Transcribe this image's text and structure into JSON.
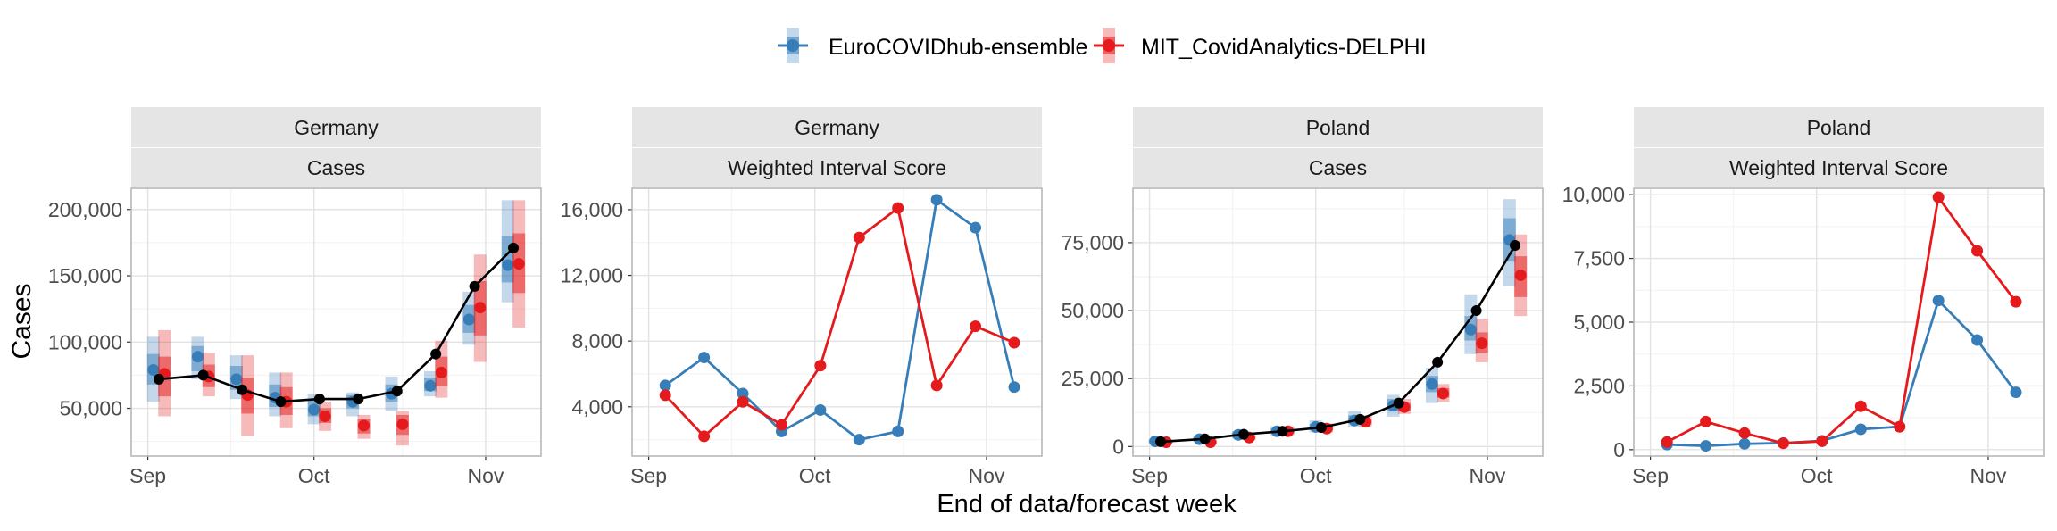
{
  "colors": {
    "ensemble": "#377EB8",
    "delphi": "#E41A1C",
    "truth": "#000000",
    "strip": "#E5E5E5",
    "grid_major": "#E3E3E3",
    "grid_minor": "#F2F2F2",
    "panel_border": "#B3B3B3",
    "tick_text": "#4D4D4D"
  },
  "legend": {
    "position": "top-center",
    "items": [
      {
        "key": "ensemble",
        "label": "EuroCOVIDhub-ensemble"
      },
      {
        "key": "delphi",
        "label": "MIT_CovidAnalytics-DELPHI"
      }
    ]
  },
  "axis_labels": {
    "y": "Cases",
    "x": "End of data/forecast week"
  },
  "chart_data": [
    {
      "type": "line",
      "location": "Germany",
      "metric": "Cases",
      "show_intervals": true,
      "x_ticks": [
        {
          "day": 0,
          "label": "Sep"
        },
        {
          "day": 30,
          "label": "Oct"
        },
        {
          "day": 61,
          "label": "Nov"
        }
      ],
      "xlim": [
        -3,
        71
      ],
      "ylim": [
        14000,
        216000
      ],
      "y_ticks": [
        {
          "value": 50000,
          "label": "50,000"
        },
        {
          "value": 100000,
          "label": "100,000"
        },
        {
          "value": 150000,
          "label": "150,000"
        },
        {
          "value": 200000,
          "label": "200,000"
        }
      ],
      "grid": true,
      "truth": {
        "x": [
          2,
          10,
          17,
          24,
          31,
          38,
          45,
          52,
          59,
          66
        ],
        "y": [
          72000,
          75000,
          64000,
          55000,
          57000,
          57000,
          63000,
          91000,
          142000,
          171000
        ]
      },
      "forecasts": {
        "ensemble": {
          "x": [
            1,
            9,
            16,
            23,
            30,
            37,
            44,
            51,
            58,
            65
          ],
          "median": [
            79000,
            89000,
            72000,
            58000,
            49000,
            55000,
            61000,
            67000,
            117000,
            158000
          ],
          "outer": [
            [
              55000,
              104000
            ],
            [
              72000,
              104000
            ],
            [
              57000,
              90000
            ],
            [
              44000,
              77000
            ],
            [
              38000,
              61000
            ],
            [
              44000,
              62000
            ],
            [
              48000,
              74000
            ],
            [
              59000,
              78000
            ],
            [
              98000,
              138000
            ],
            [
              130000,
              207000
            ]
          ],
          "inner": [
            [
              68000,
              91000
            ],
            [
              78000,
              97000
            ],
            [
              64000,
              82000
            ],
            [
              51000,
              68000
            ],
            [
              44000,
              56000
            ],
            [
              50000,
              60000
            ],
            [
              55000,
              68000
            ],
            [
              63000,
              73000
            ],
            [
              107000,
              128000
            ],
            [
              145000,
              180000
            ]
          ]
        },
        "delphi": {
          "x": [
            3,
            11,
            18,
            25,
            32,
            39,
            46,
            53,
            60,
            67
          ],
          "median": [
            76000,
            74000,
            60000,
            55000,
            44000,
            37000,
            38000,
            77000,
            126000,
            159000
          ],
          "outer": [
            [
              44000,
              109000
            ],
            [
              59000,
              92000
            ],
            [
              29000,
              90000
            ],
            [
              35000,
              77000
            ],
            [
              33000,
              55000
            ],
            [
              27000,
              45000
            ],
            [
              22000,
              48000
            ],
            [
              58000,
              101000
            ],
            [
              85000,
              166000
            ],
            [
              111000,
              207000
            ]
          ],
          "inner": [
            [
              59000,
              89000
            ],
            [
              66000,
              83000
            ],
            [
              46000,
              73000
            ],
            [
              45000,
              66000
            ],
            [
              39000,
              50000
            ],
            [
              31000,
              42000
            ],
            [
              30000,
              45000
            ],
            [
              67000,
              89000
            ],
            [
              105000,
              146000
            ],
            [
              137000,
              182000
            ]
          ]
        }
      }
    },
    {
      "type": "line",
      "location": "Germany",
      "metric": "Weighted Interval Score",
      "show_intervals": false,
      "x_ticks": [
        {
          "day": 0,
          "label": "Sep"
        },
        {
          "day": 30,
          "label": "Oct"
        },
        {
          "day": 61,
          "label": "Nov"
        }
      ],
      "xlim": [
        -3,
        71
      ],
      "ylim": [
        1000,
        17300
      ],
      "y_ticks": [
        {
          "value": 4000,
          "label": "4,000"
        },
        {
          "value": 8000,
          "label": "8,000"
        },
        {
          "value": 12000,
          "label": "12,000"
        },
        {
          "value": 16000,
          "label": "16,000"
        }
      ],
      "grid": true,
      "series": [
        {
          "key": "ensemble",
          "x": [
            3,
            10,
            17,
            24,
            31,
            38,
            45,
            52,
            59,
            66
          ],
          "y": [
            5300,
            7000,
            4800,
            2500,
            3800,
            2000,
            2500,
            16600,
            14900,
            5200
          ]
        },
        {
          "key": "delphi",
          "x": [
            3,
            10,
            17,
            24,
            31,
            38,
            45,
            52,
            59,
            66
          ],
          "y": [
            4700,
            2200,
            4300,
            2900,
            6500,
            14300,
            16100,
            5300,
            8900,
            7900
          ]
        }
      ]
    },
    {
      "type": "line",
      "location": "Poland",
      "metric": "Cases",
      "show_intervals": true,
      "x_ticks": [
        {
          "day": 0,
          "label": "Sep"
        },
        {
          "day": 30,
          "label": "Oct"
        },
        {
          "day": 61,
          "label": "Nov"
        }
      ],
      "xlim": [
        -3,
        71
      ],
      "ylim": [
        -3500,
        95000
      ],
      "y_ticks": [
        {
          "value": 0,
          "label": "0"
        },
        {
          "value": 25000,
          "label": "25,000"
        },
        {
          "value": 50000,
          "label": "50,000"
        },
        {
          "value": 75000,
          "label": "75,000"
        }
      ],
      "grid": true,
      "truth": {
        "x": [
          2,
          10,
          17,
          24,
          31,
          38,
          45,
          52,
          59,
          66
        ],
        "y": [
          1800,
          2800,
          4500,
          5600,
          7000,
          10000,
          16000,
          31000,
          50000,
          74000
        ]
      },
      "forecasts": {
        "ensemble": {
          "x": [
            1,
            9,
            16,
            23,
            30,
            37,
            44,
            51,
            58,
            65
          ],
          "median": [
            1900,
            2700,
            4300,
            5600,
            7200,
            9600,
            15000,
            23000,
            43000,
            76000
          ],
          "outer": [
            [
              1000,
              2900
            ],
            [
              1700,
              3800
            ],
            [
              3000,
              5700
            ],
            [
              4000,
              7500
            ],
            [
              5200,
              9600
            ],
            [
              7200,
              13000
            ],
            [
              11000,
              19000
            ],
            [
              16000,
              29000
            ],
            [
              34000,
              56000
            ],
            [
              59000,
              91000
            ]
          ],
          "inner": [
            [
              1500,
              2500
            ],
            [
              2200,
              3300
            ],
            [
              3700,
              5000
            ],
            [
              4900,
              6600
            ],
            [
              6200,
              8400
            ],
            [
              8400,
              11500
            ],
            [
              13000,
              17500
            ],
            [
              20000,
              26000
            ],
            [
              39000,
              48000
            ],
            [
              68000,
              84000
            ]
          ]
        },
        "delphi": {
          "x": [
            3,
            11,
            18,
            25,
            32,
            39,
            46,
            53,
            60,
            67
          ],
          "median": [
            1600,
            1600,
            3300,
            5600,
            6600,
            9100,
            14500,
            19500,
            38000,
            63000
          ],
          "outer": [
            [
              1000,
              2500
            ],
            [
              900,
              2600
            ],
            [
              2200,
              4800
            ],
            [
              4200,
              7400
            ],
            [
              5200,
              8500
            ],
            [
              7300,
              11500
            ],
            [
              12000,
              17500
            ],
            [
              16500,
              23000
            ],
            [
              31000,
              47000
            ],
            [
              48000,
              78000
            ]
          ],
          "inner": [
            [
              1300,
              2000
            ],
            [
              1200,
              2100
            ],
            [
              2700,
              4000
            ],
            [
              4900,
              6500
            ],
            [
              5900,
              7500
            ],
            [
              8200,
              10300
            ],
            [
              13200,
              16000
            ],
            [
              18000,
              21500
            ],
            [
              34500,
              42000
            ],
            [
              55000,
              70000
            ]
          ]
        }
      }
    },
    {
      "type": "line",
      "location": "Poland",
      "metric": "Weighted Interval Score",
      "show_intervals": false,
      "x_ticks": [
        {
          "day": 0,
          "label": "Sep"
        },
        {
          "day": 30,
          "label": "Oct"
        },
        {
          "day": 61,
          "label": "Nov"
        }
      ],
      "xlim": [
        -3,
        71
      ],
      "ylim": [
        -250,
        10250
      ],
      "y_ticks": [
        {
          "value": 0,
          "label": "0"
        },
        {
          "value": 2500,
          "label": "2,500"
        },
        {
          "value": 5000,
          "label": "5,000"
        },
        {
          "value": 7500,
          "label": "7,500"
        },
        {
          "value": 10000,
          "label": "10,000"
        }
      ],
      "grid": true,
      "series": [
        {
          "key": "ensemble",
          "x": [
            3,
            10,
            17,
            24,
            31,
            38,
            45,
            52,
            59,
            66
          ],
          "y": [
            200,
            150,
            230,
            260,
            350,
            800,
            900,
            5850,
            4300,
            2250
          ]
        },
        {
          "key": "delphi",
          "x": [
            3,
            10,
            17,
            24,
            31,
            38,
            45,
            52,
            59,
            66
          ],
          "y": [
            300,
            1100,
            650,
            250,
            330,
            1700,
            900,
            9900,
            7800,
            5800
          ]
        }
      ]
    }
  ]
}
